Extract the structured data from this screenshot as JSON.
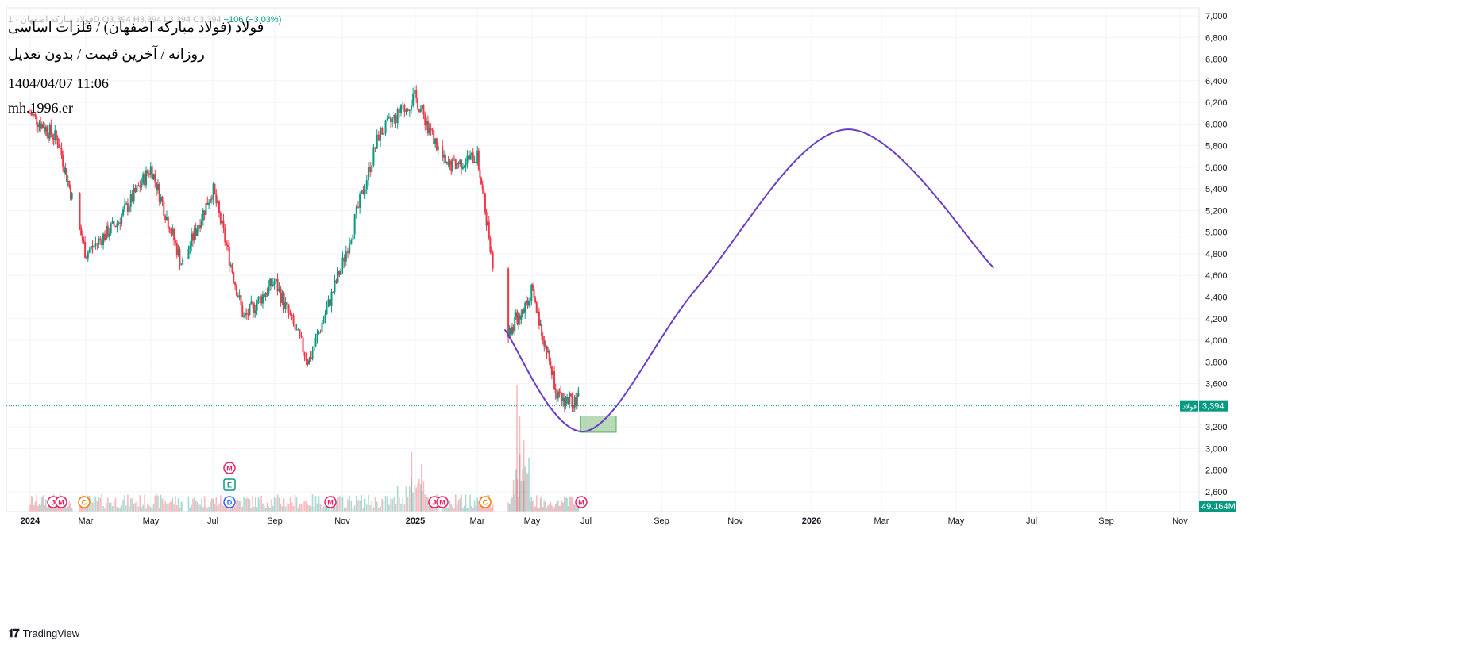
{
  "header": {
    "symbol_line": "فولاد مبارکه اصفهان · 1D",
    "open": "O3,394",
    "high": "H3,394",
    "low": "L3,394",
    "close": "C3,394",
    "change": "−106 (−3.03%)"
  },
  "overlay": {
    "title": "فولاد (فولاد مبارکه اصفهان) / فلزات اساسی",
    "subtitle": "روزانه / آخرین قیمت / بدون تعدیل",
    "datetime": "1404/04/07 11:06",
    "author": "mh.1996.er"
  },
  "price_axis": {
    "ticks": [
      "7,000",
      "6,800",
      "6,600",
      "6,400",
      "6,200",
      "6,000",
      "5,800",
      "5,600",
      "5,400",
      "5,200",
      "5,000",
      "4,800",
      "4,600",
      "4,400",
      "4,200",
      "4,000",
      "3,800",
      "3,600",
      "3,400",
      "3,200",
      "3,000",
      "2,800",
      "2,600"
    ],
    "last_price_label": "3,394",
    "symbol_tag": "فولاد",
    "volume_label": "49.164M"
  },
  "time_axis": {
    "labels": [
      "2024",
      "Mar",
      "May",
      "Jul",
      "Sep",
      "Nov",
      "2025",
      "Mar",
      "May",
      "Jul",
      "Sep",
      "Nov",
      "2026",
      "Mar",
      "May",
      "Jul",
      "Sep",
      "Nov"
    ]
  },
  "event_markers": [
    "J",
    "M",
    "C",
    "M",
    "E",
    "D",
    "M",
    "J",
    "M",
    "C",
    "M"
  ],
  "colors": {
    "up": "#089981",
    "down": "#f23645",
    "projection": "#6a3cc4",
    "target_zone": "#9bc99b",
    "last_price_line": "#089981",
    "marker_magenta": "#e91e63",
    "marker_orange": "#f57c00",
    "marker_blue": "#2962ff",
    "marker_green": "#089981"
  },
  "brand": {
    "name": "TradingView",
    "icon": "tradingview-logo-icon"
  },
  "chart_data": {
    "type": "candlestick",
    "timeframe": "1D",
    "ylim": [
      2500,
      7050
    ],
    "last_price": 3394,
    "target_zone": {
      "price_low": 3150,
      "price_high": 3300,
      "dates": [
        "Jul",
        "Aug"
      ]
    },
    "projection_curve": {
      "type": "line",
      "points": [
        {
          "x": "Apr 2025",
          "y": 4100
        },
        {
          "x": "Jul 2025",
          "y": 3160
        },
        {
          "x": "Oct 2025",
          "y": 4500
        },
        {
          "x": "Feb 2026",
          "y": 5950
        },
        {
          "x": "Jun 2026",
          "y": 4670
        }
      ]
    },
    "price_path": [
      {
        "x": "Jan 2024",
        "y": 6100
      },
      {
        "x": "Feb 2024",
        "y": 5850
      },
      {
        "x": "Mar 2024",
        "y": 4800
      },
      {
        "x": "Apr 2024",
        "y": 5100
      },
      {
        "x": "May 2024",
        "y": 5600
      },
      {
        "x": "Jun 2024",
        "y": 4700
      },
      {
        "x": "Jul 2024",
        "y": 5400
      },
      {
        "x": "Aug 2024",
        "y": 4200
      },
      {
        "x": "Sep 2024",
        "y": 4550
      },
      {
        "x": "Oct 2024",
        "y": 3800
      },
      {
        "x": "Nov 2024",
        "y": 4700
      },
      {
        "x": "Dec 2024",
        "y": 5900
      },
      {
        "x": "Jan 2025",
        "y": 6250
      },
      {
        "x": "Feb 2025",
        "y": 5600
      },
      {
        "x": "Mar 2025",
        "y": 5700
      },
      {
        "x": "Apr 2025",
        "y": 4000
      },
      {
        "x": "May 2025",
        "y": 4450
      },
      {
        "x": "Jun 2025",
        "y": 3450
      }
    ]
  }
}
